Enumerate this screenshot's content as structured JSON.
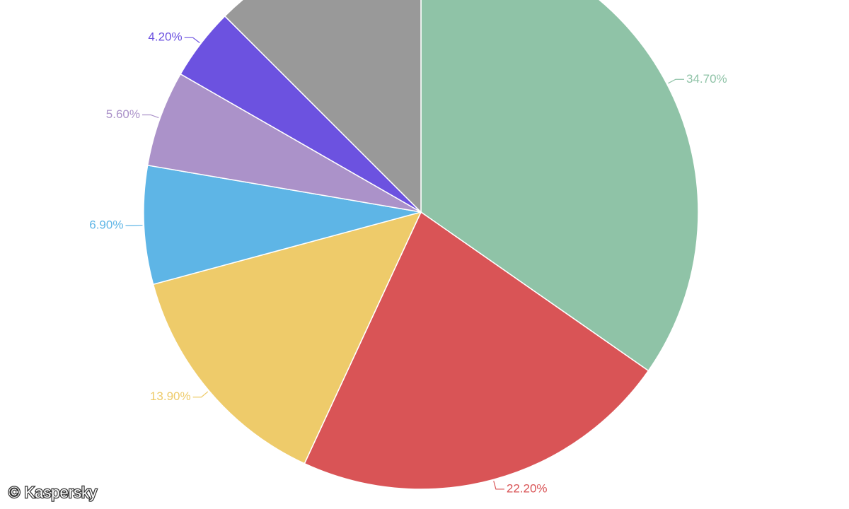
{
  "chart_data": {
    "type": "pie",
    "values": [
      34.7,
      22.2,
      13.9,
      6.9,
      5.6,
      4.2,
      12.5
    ],
    "value_labels": [
      "34.70%",
      "22.20%",
      "13.90%",
      "6.90%",
      "5.60%",
      "4.20%",
      null
    ],
    "colors": [
      "#8fc3a7",
      "#d95456",
      "#eecb6a",
      "#5eb5e6",
      "#ab92c9",
      "#6c52e0",
      "#999999"
    ],
    "start_angle": 0,
    "direction": "clockwise"
  },
  "watermark": "© Kaspersky"
}
